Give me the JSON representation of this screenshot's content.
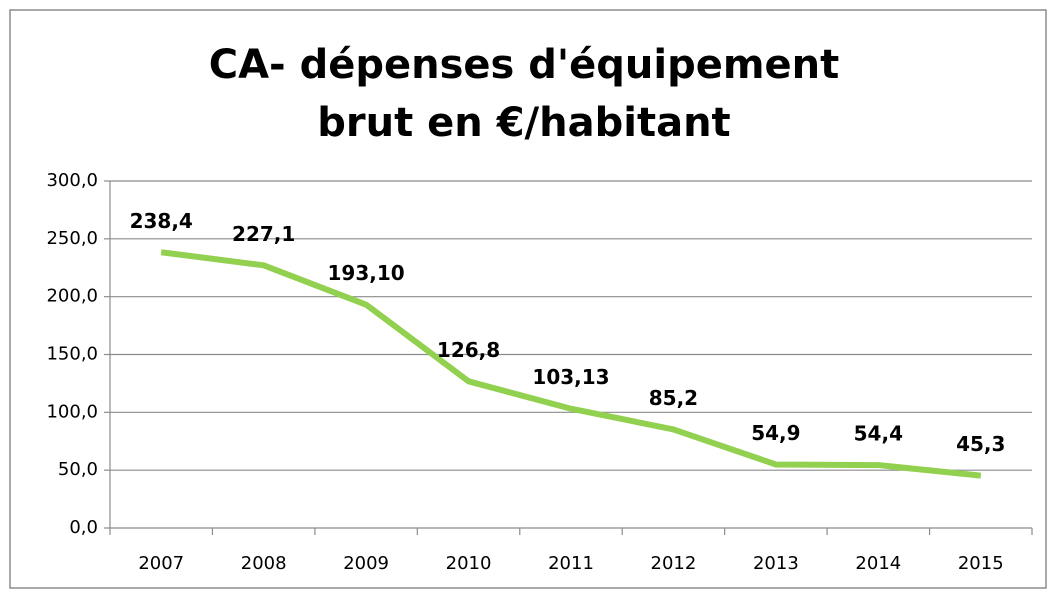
{
  "chart_data": {
    "type": "line",
    "title": "CA- dépenses d'équipement brut en €/habitant",
    "categories": [
      "2007",
      "2008",
      "2009",
      "2010",
      "2011",
      "2012",
      "2013",
      "2014",
      "2015"
    ],
    "values": [
      238.4,
      227.1,
      193.1,
      126.8,
      103.13,
      85.2,
      54.9,
      54.4,
      45.3
    ],
    "value_labels": [
      "238,4",
      "227,1",
      "193,10",
      "126,8",
      "103,13",
      "85,2",
      "54,9",
      "54,4",
      "45,3"
    ],
    "color": "#92d050",
    "ylim": [
      0,
      300
    ],
    "yticks": [
      {
        "value": 0,
        "label": "0,0"
      },
      {
        "value": 50,
        "label": "50,0"
      },
      {
        "value": 100,
        "label": "100,0"
      },
      {
        "value": 150,
        "label": "150,0"
      },
      {
        "value": 200,
        "label": "200,0"
      },
      {
        "value": 250,
        "label": "250,0"
      },
      {
        "value": 300,
        "label": "300,0"
      }
    ],
    "grid": true
  }
}
